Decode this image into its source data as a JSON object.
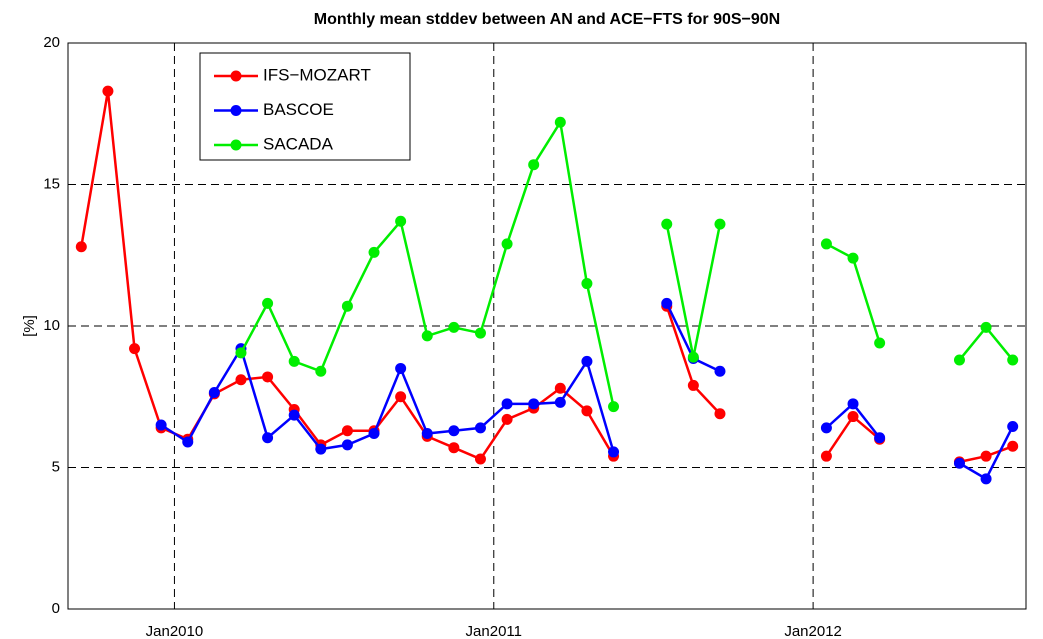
{
  "chart_data": {
    "type": "line",
    "title": "Monthly mean stddev between AN and ACE−FTS for 90S−90N",
    "ylabel": "[%]",
    "x": [
      "2009-09",
      "2009-10",
      "2009-11",
      "2009-12",
      "2010-01",
      "2010-02",
      "2010-03",
      "2010-04",
      "2010-05",
      "2010-06",
      "2010-07",
      "2010-08",
      "2010-09",
      "2010-10",
      "2010-11",
      "2010-12",
      "2011-01",
      "2011-02",
      "2011-03",
      "2011-04",
      "2011-05",
      "2011-06",
      "2011-07",
      "2011-08",
      "2011-09",
      "2011-10",
      "2011-11",
      "2011-12",
      "2012-01",
      "2012-02",
      "2012-03",
      "2012-04",
      "2012-05",
      "2012-06",
      "2012-07",
      "2012-08"
    ],
    "series": [
      {
        "name": "IFS−MOZART",
        "color": "#ff0000",
        "values": [
          12.8,
          18.3,
          9.2,
          6.4,
          6.0,
          7.6,
          8.1,
          8.2,
          7.05,
          5.8,
          6.3,
          6.3,
          7.5,
          6.1,
          5.7,
          5.3,
          6.7,
          7.1,
          7.8,
          7.0,
          5.4,
          null,
          10.7,
          7.9,
          6.9,
          null,
          null,
          null,
          5.4,
          6.8,
          6.0,
          null,
          null,
          5.2,
          5.4,
          5.75
        ]
      },
      {
        "name": "BASCOE",
        "color": "#0000ff",
        "values": [
          null,
          null,
          null,
          6.5,
          5.9,
          7.65,
          9.2,
          6.05,
          6.85,
          5.65,
          5.8,
          6.2,
          8.5,
          6.2,
          6.3,
          6.4,
          7.25,
          7.25,
          7.3,
          8.75,
          5.55,
          null,
          10.8,
          8.85,
          8.4,
          null,
          null,
          null,
          6.4,
          7.25,
          6.05,
          null,
          null,
          5.15,
          4.6,
          6.45
        ]
      },
      {
        "name": "SACADA",
        "color": "#00ee00",
        "values": [
          null,
          null,
          null,
          null,
          null,
          null,
          9.05,
          10.8,
          8.75,
          8.4,
          10.7,
          12.6,
          13.7,
          9.65,
          9.95,
          9.75,
          12.9,
          15.7,
          17.2,
          11.5,
          7.15,
          null,
          13.6,
          8.9,
          13.6,
          null,
          null,
          null,
          12.9,
          12.4,
          9.4,
          null,
          null,
          8.8,
          9.95,
          8.8
        ]
      }
    ],
    "xlim": [
      "2009-09",
      "2012-09"
    ],
    "xticks": [
      {
        "value": "2010-01",
        "label": "Jan2010"
      },
      {
        "value": "2011-01",
        "label": "Jan2011"
      },
      {
        "value": "2012-01",
        "label": "Jan2012"
      }
    ],
    "ylim": [
      0,
      20
    ],
    "yticks": [
      0,
      5,
      10,
      15,
      20
    ],
    "grid": true,
    "legend": "upper left"
  }
}
